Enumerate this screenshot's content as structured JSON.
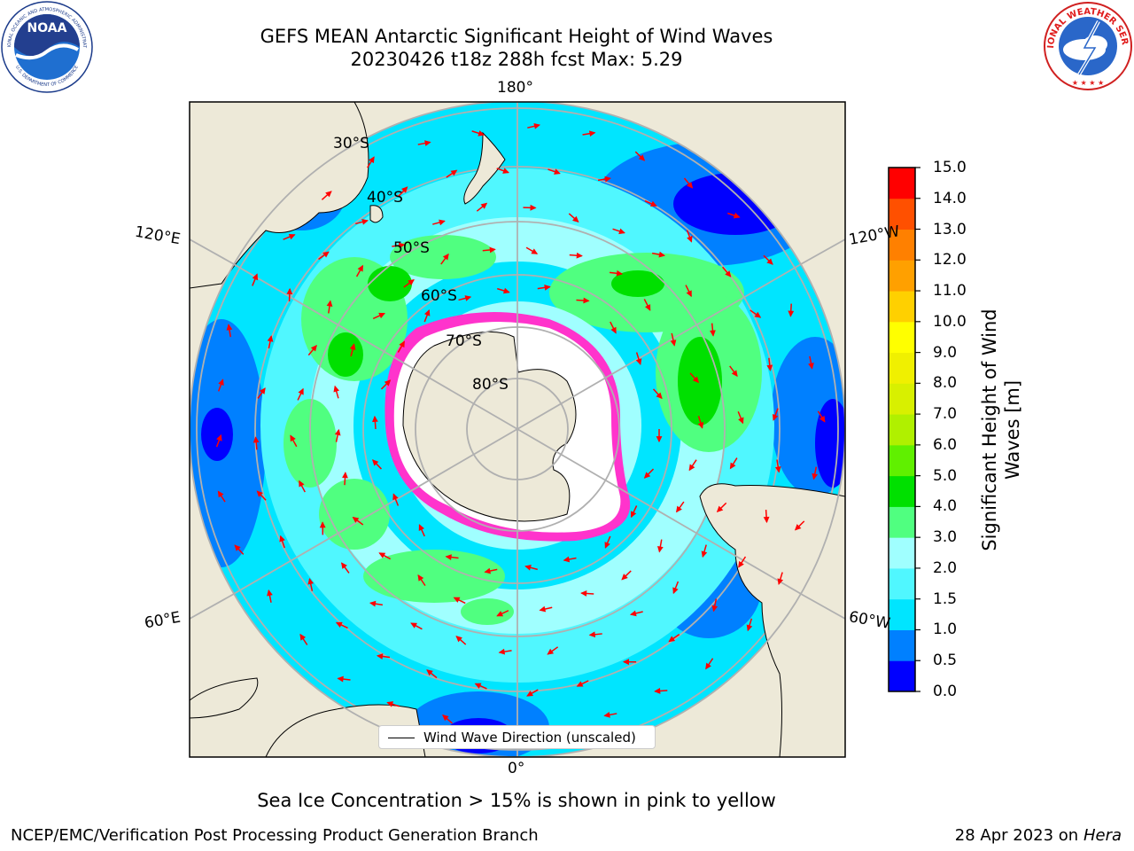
{
  "header": {
    "title_line1": "GEFS MEAN Antarctic Significant Height of Wind Waves",
    "title_line2": "20230426 t18z 288h fcst   Max: 5.29"
  },
  "logos": {
    "left": "noaa-logo",
    "left_text": "NOAA",
    "left_ring_top": "NATIONAL OCEANIC AND ATMOSPHERIC ADMINISTRATION",
    "left_ring_bottom": "U.S. DEPARTMENT OF COMMERCE",
    "right": "national-weather-service-logo",
    "right_ring_top": "NATIONAL WEATHER SERVICE"
  },
  "map": {
    "longitude_labels": {
      "top": "180°",
      "bottom": "0°",
      "left_upper": "120°E",
      "left_lower": "60°E",
      "right_upper": "120°W",
      "right_lower": "60°W"
    },
    "latitude_labels": [
      "30°S",
      "40°S",
      "50°S",
      "60°S",
      "70°S",
      "80°S"
    ],
    "colors": {
      "ocean_land": "#ede9d8",
      "ice": "#ffffff",
      "ice_edge": "#ff33cc",
      "arrow": "#ff0000",
      "grid": "#b0b0b0"
    },
    "legend": {
      "label": "Wind Wave Direction (unscaled)"
    }
  },
  "colorbar": {
    "label_line1": "Significant Height of Wind",
    "label_line2": "Waves [m]",
    "ticks": [
      "0.0",
      "0.5",
      "1.0",
      "1.5",
      "2.0",
      "3.0",
      "4.0",
      "5.0",
      "6.0",
      "7.0",
      "8.0",
      "9.0",
      "10.0",
      "11.0",
      "12.0",
      "13.0",
      "14.0",
      "15.0"
    ],
    "colors": [
      "#0000ff",
      "#0080ff",
      "#00e5ff",
      "#50f7ff",
      "#a0ffff",
      "#50ff80",
      "#00e000",
      "#60f000",
      "#b0f000",
      "#d8f000",
      "#f0f000",
      "#ffff00",
      "#ffd000",
      "#ffa000",
      "#ff8000",
      "#ff5000",
      "#ff0000"
    ]
  },
  "footer": {
    "subtitle": "Sea Ice Concentration > 15% is shown in pink to yellow",
    "left": "NCEP/EMC/Verification Post Processing Product Generation Branch",
    "right_date": "28 Apr 2023 on ",
    "right_host": "Hera"
  }
}
